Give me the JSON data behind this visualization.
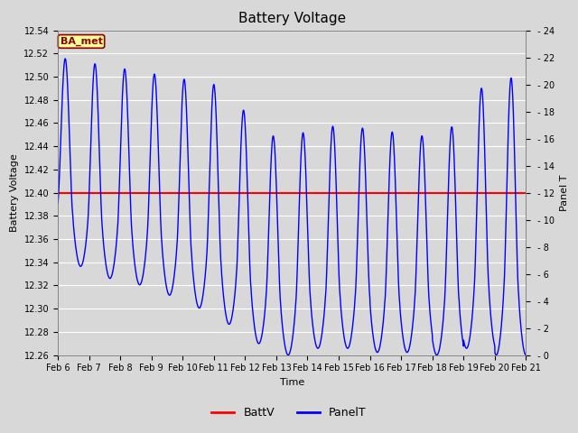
{
  "title": "Battery Voltage",
  "xlabel": "Time",
  "ylabel_left": "Battery Voltage",
  "ylabel_right": "Panel T",
  "xlim": [
    0,
    15
  ],
  "ylim_left": [
    12.26,
    12.54
  ],
  "ylim_right": [
    0,
    24
  ],
  "battv_value": 12.4,
  "battv_color": "red",
  "panelt_color": "blue",
  "background_color": "#d8d8d8",
  "plot_bg_color": "#d8d8d8",
  "grid_color": "white",
  "annotation_text": "BA_met",
  "annotation_bg": "#ffff99",
  "annotation_border": "darkred",
  "xtick_labels": [
    "Feb 6",
    "Feb 7",
    "Feb 8",
    "Feb 9",
    "Feb 10",
    "Feb 11",
    "Feb 12",
    "Feb 13",
    "Feb 14",
    "Feb 15",
    "Feb 16",
    "Feb 17",
    "Feb 18",
    "Feb 19",
    "Feb 20",
    "Feb 21"
  ],
  "ytick_left": [
    12.26,
    12.28,
    12.3,
    12.32,
    12.34,
    12.36,
    12.38,
    12.4,
    12.42,
    12.44,
    12.46,
    12.48,
    12.5,
    12.52,
    12.54
  ],
  "ytick_right": [
    0,
    2,
    4,
    6,
    8,
    10,
    12,
    14,
    16,
    18,
    20,
    22,
    24
  ],
  "legend_labels": [
    "BattV",
    "PanelT"
  ],
  "legend_colors": [
    "red",
    "blue"
  ],
  "figsize": [
    6.4,
    4.8
  ],
  "dpi": 100
}
